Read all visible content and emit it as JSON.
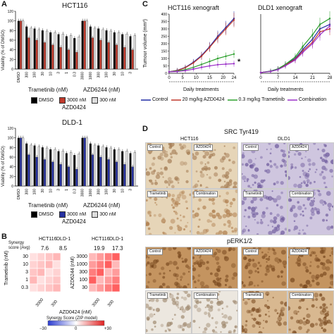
{
  "panels": {
    "A": "A",
    "B": "B",
    "C": "C",
    "D": "D"
  },
  "panelA": {
    "ylabel": "Viability (% of DMSO)",
    "yticks": [
      "0",
      "20",
      "40",
      "60",
      "80",
      "100",
      "120"
    ],
    "xticks_top": [
      "DMSO",
      "300",
      "100",
      "30",
      "10",
      "3",
      "1",
      "0.3",
      "3000",
      "1000",
      "300",
      "100",
      "30",
      "10",
      "3"
    ],
    "xticks_bottom": [
      "DMSO",
      "300",
      "100",
      "30",
      "10",
      "3",
      "1",
      "0.3",
      "3000",
      "1000",
      "300",
      "100",
      "30",
      "10",
      "3"
    ],
    "top": {
      "title": "HCT116",
      "drug1": "Trametinib (nM)",
      "drug2": "AZD6244 (nM)",
      "legend": [
        "DMSO",
        "3000 nM",
        "300 nM"
      ],
      "legend_title": "AZD0424"
    },
    "bottom": {
      "title": "DLD-1",
      "drug1": "Trametinib (nM)",
      "drug2": "AZD6244 (nM)",
      "legend": [
        "DMSO",
        "3000 nM",
        "300 nM"
      ],
      "legend_title": "AZD0424"
    },
    "colors": {
      "dmso": "#000000",
      "hct_high": "#c0392b",
      "dld_high": "#2530a0",
      "low": "#dddddd"
    }
  },
  "panelB": {
    "synergy_label": "Synergy score (Avg)",
    "left": {
      "lines": [
        "HCT116",
        "DLD-1"
      ],
      "scores": [
        "7.6",
        "8.5"
      ],
      "ylabel": "Trametinib (nM)",
      "yticks": [
        "30",
        "10",
        "3",
        "1",
        "0.3"
      ]
    },
    "right": {
      "lines": [
        "HCT116",
        "DLD-1"
      ],
      "scores": [
        "19.9",
        "17.3"
      ],
      "ylabel": "AZD6244 (nM)",
      "yticks": [
        "3000",
        "1000",
        "300",
        "100",
        "30"
      ]
    },
    "xticks": [
      "3000",
      "300",
      "3000",
      "300"
    ],
    "xlabel": "AZD0424 (nM)",
    "scale_title": "Synergy Score (ZIP model)",
    "scale_min": "−30",
    "scale_zero": "0",
    "scale_max": "+30"
  },
  "panelC": {
    "ylabel": "Tumour volume (mm³)",
    "left": {
      "title": "HCT116 xenograft",
      "xticks": [
        "0",
        "5",
        "10",
        "15",
        "20",
        "24"
      ],
      "yticks": [
        "0",
        "50",
        "100",
        "150",
        "200",
        "250",
        "300",
        "350",
        "400"
      ]
    },
    "right": {
      "title": "DLD1 xenograft",
      "xticks": [
        "0",
        "7",
        "14",
        "21",
        "28"
      ]
    },
    "xlabel": "Daily treatments",
    "star": "*",
    "legend": [
      "Control",
      "20 mg/kg AZD0424",
      "0.3 mg/kg Trametinib",
      "Combination"
    ],
    "colors": [
      "#1f2aa5",
      "#c0392b",
      "#2ca02c",
      "#9b30c8"
    ]
  },
  "chart_data": [
    {
      "type": "line",
      "title": "HCT116 xenograft",
      "x": [
        0,
        3,
        6,
        9,
        12,
        15,
        18,
        21,
        24
      ],
      "xlabel": "Daily treatments",
      "ylabel": "Tumour volume (mm³)",
      "ylim": [
        0,
        400
      ],
      "series": [
        {
          "name": "Control",
          "values": [
            10,
            20,
            40,
            75,
            120,
            180,
            250,
            310,
            370
          ]
        },
        {
          "name": "20 mg/kg AZD0424",
          "values": [
            10,
            18,
            38,
            70,
            115,
            175,
            240,
            300,
            360
          ]
        },
        {
          "name": "0.3 mg/kg Trametinib",
          "values": [
            10,
            15,
            25,
            40,
            60,
            80,
            100,
            115,
            130
          ]
        },
        {
          "name": "Combination",
          "values": [
            10,
            12,
            18,
            28,
            40,
            50,
            58,
            62,
            65
          ]
        }
      ]
    },
    {
      "type": "line",
      "title": "DLD1 xenograft",
      "x": [
        0,
        4,
        7,
        10,
        14,
        17,
        21,
        24,
        28
      ],
      "xlabel": "Daily treatments",
      "ylim": [
        0,
        400
      ],
      "series": [
        {
          "name": "Control",
          "values": [
            5,
            15,
            30,
            60,
            100,
            160,
            230,
            300,
            330
          ]
        },
        {
          "name": "20 mg/kg AZD0424",
          "values": [
            5,
            14,
            28,
            55,
            95,
            150,
            210,
            280,
            300
          ]
        },
        {
          "name": "0.3 mg/kg Trametinib",
          "values": [
            5,
            14,
            30,
            60,
            110,
            180,
            260,
            330,
            370
          ]
        },
        {
          "name": "Combination",
          "values": [
            5,
            12,
            25,
            50,
            90,
            140,
            200,
            260,
            320
          ]
        }
      ]
    }
  ],
  "panelD": {
    "title_top": "SRC Tyr419",
    "title_bottom": "pERK1/2",
    "hct": "HCT116",
    "dld": "DLD1",
    "tags": [
      "Control",
      "AZD0424",
      "Trametinib",
      "Combination"
    ]
  }
}
